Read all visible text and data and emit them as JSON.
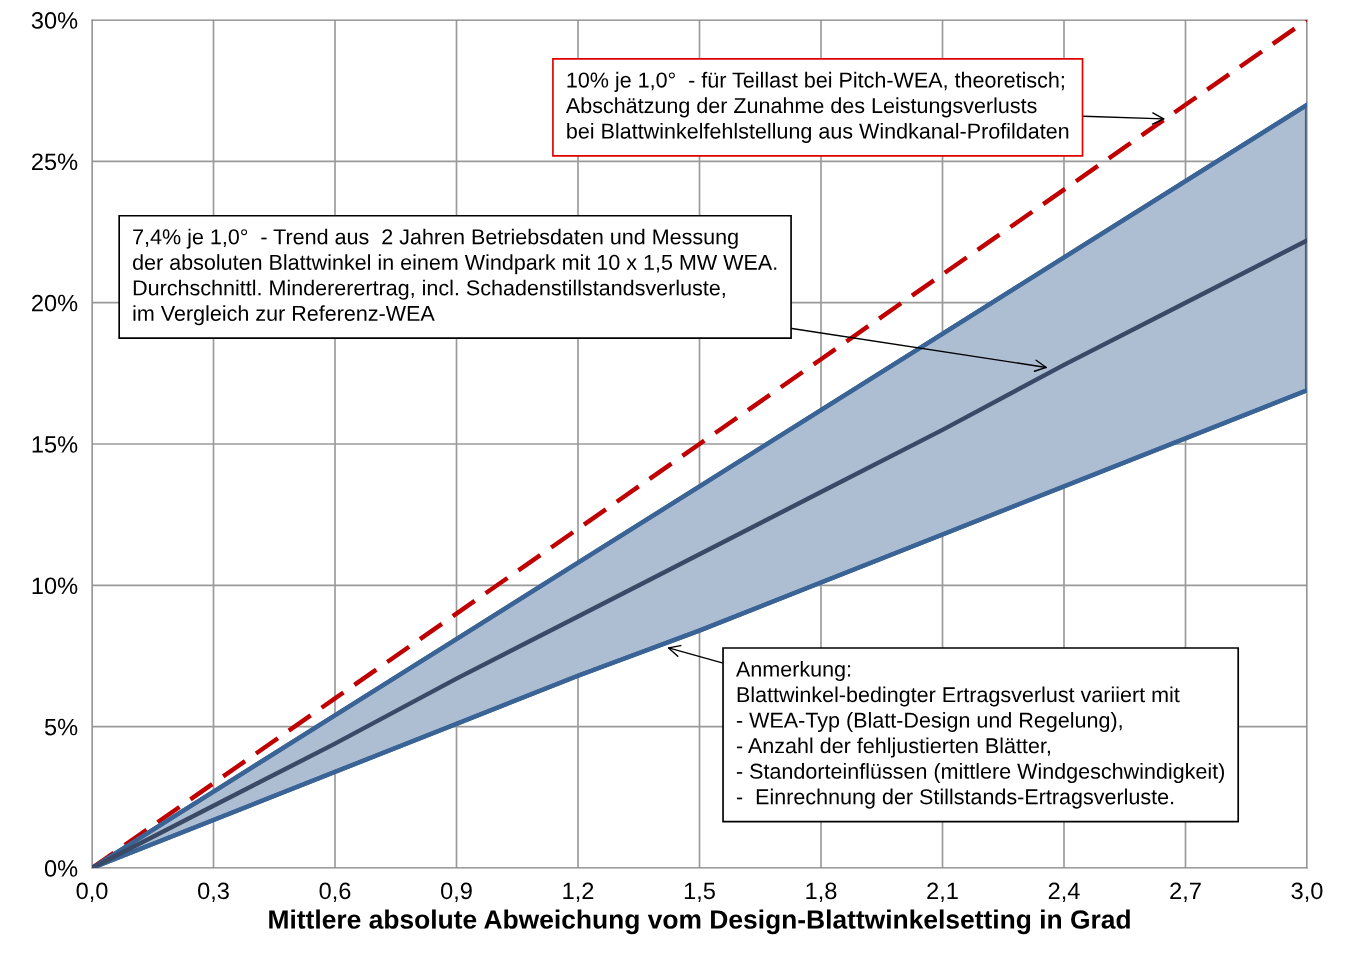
{
  "chart_data": {
    "type": "line",
    "xlabel": "Mittlere absolute Abweichung vom Design-Blattwinkelsetting in Grad",
    "x": [
      0.0,
      0.3,
      0.6,
      0.9,
      1.2,
      1.5,
      1.8,
      2.1,
      2.4,
      2.7,
      3.0
    ],
    "series": [
      {
        "color": "#c00000",
        "line_style": "dashed",
        "values": [
          0,
          3,
          6,
          9,
          12,
          15,
          18,
          21,
          24,
          27,
          30
        ]
      },
      {
        "color": "#3b6496",
        "line_style": "solid",
        "values": [
          0,
          2.7,
          5.4,
          8.1,
          10.8,
          13.5,
          16.2,
          18.9,
          21.6,
          24.3,
          27.0
        ]
      },
      {
        "color": "#3b6496",
        "line_style": "solid",
        "values": [
          0,
          1.7,
          3.4,
          5.1,
          6.8,
          8.4,
          10.1,
          11.8,
          13.5,
          15.2,
          16.9
        ]
      },
      {
        "color": "#3a4a66",
        "line_style": "solid",
        "values": [
          0,
          2.2,
          4.4,
          6.7,
          8.9,
          11.1,
          13.3,
          15.5,
          17.8,
          20.0,
          22.2
        ],
        "lower": [
          0,
          1.7,
          3.4,
          5.1,
          6.8,
          8.4,
          10.1,
          11.8,
          13.5,
          15.2,
          16.9
        ],
        "upper": [
          0,
          2.7,
          5.4,
          8.1,
          10.8,
          13.5,
          16.2,
          18.9,
          21.6,
          24.3,
          27.0
        ]
      }
    ],
    "xlim": [
      0,
      3.0
    ],
    "xticks": [
      {
        "value": 0,
        "label": "0,0"
      },
      {
        "value": 0.3,
        "label": "0,3"
      },
      {
        "value": 0.6,
        "label": "0,6"
      },
      {
        "value": 0.9,
        "label": "0,9"
      },
      {
        "value": 1.2,
        "label": "1,2"
      },
      {
        "value": 1.5,
        "label": "1,5"
      },
      {
        "value": 1.8,
        "label": "1,8"
      },
      {
        "value": 2.1,
        "label": "2,1"
      },
      {
        "value": 2.4,
        "label": "2,4"
      },
      {
        "value": 2.7,
        "label": "2,7"
      },
      {
        "value": 3.0,
        "label": "3,0"
      }
    ],
    "ylim": [
      0,
      30
    ],
    "yticks": [
      {
        "value": 0,
        "label": "0%"
      },
      {
        "value": 5,
        "label": "5%"
      },
      {
        "value": 10,
        "label": "10%"
      },
      {
        "value": 15,
        "label": "15%"
      },
      {
        "value": 20,
        "label": "20%"
      },
      {
        "value": 25,
        "label": "25%"
      },
      {
        "value": 30,
        "label": "30%"
      }
    ],
    "grid": true,
    "annotations": [
      {
        "text": "10% je 1,0°  - für Teillast bei Pitch-WEA, theoretisch;\nAbschätzung der Zunahme des Leistungsverlusts\nbei Blattwinkelfehlstellung aus Windkanal-Profildaten",
        "x": 2.65,
        "y": 26.5
      },
      {
        "text": "7,4% je 1,0°  - Trend aus  2 Jahren Betriebsdaten und Messung\nder absoluten Blattwinkel in einem Windpark mit 10 x 1,5 MW WEA.\nDurchschnittl. Mindererertrag, incl. Schadenstillstandsverluste,\nim Vergleich zur Referenz-WEA",
        "x": 2.36,
        "y": 17.7
      },
      {
        "text": "Anmerkung:\nBlattwinkel-bedingter Ertragsverlust variiert mit\n- WEA-Typ (Blatt-Design und Regelung),\n- Anzahl der fehljustierten Blätter,\n- Standorteinflüssen (mittlere Windgeschwindigkeit)\n-  Einrechnung der Stillstands-Ertragsverluste.",
        "x": 1.42,
        "y": 7.8
      }
    ]
  }
}
